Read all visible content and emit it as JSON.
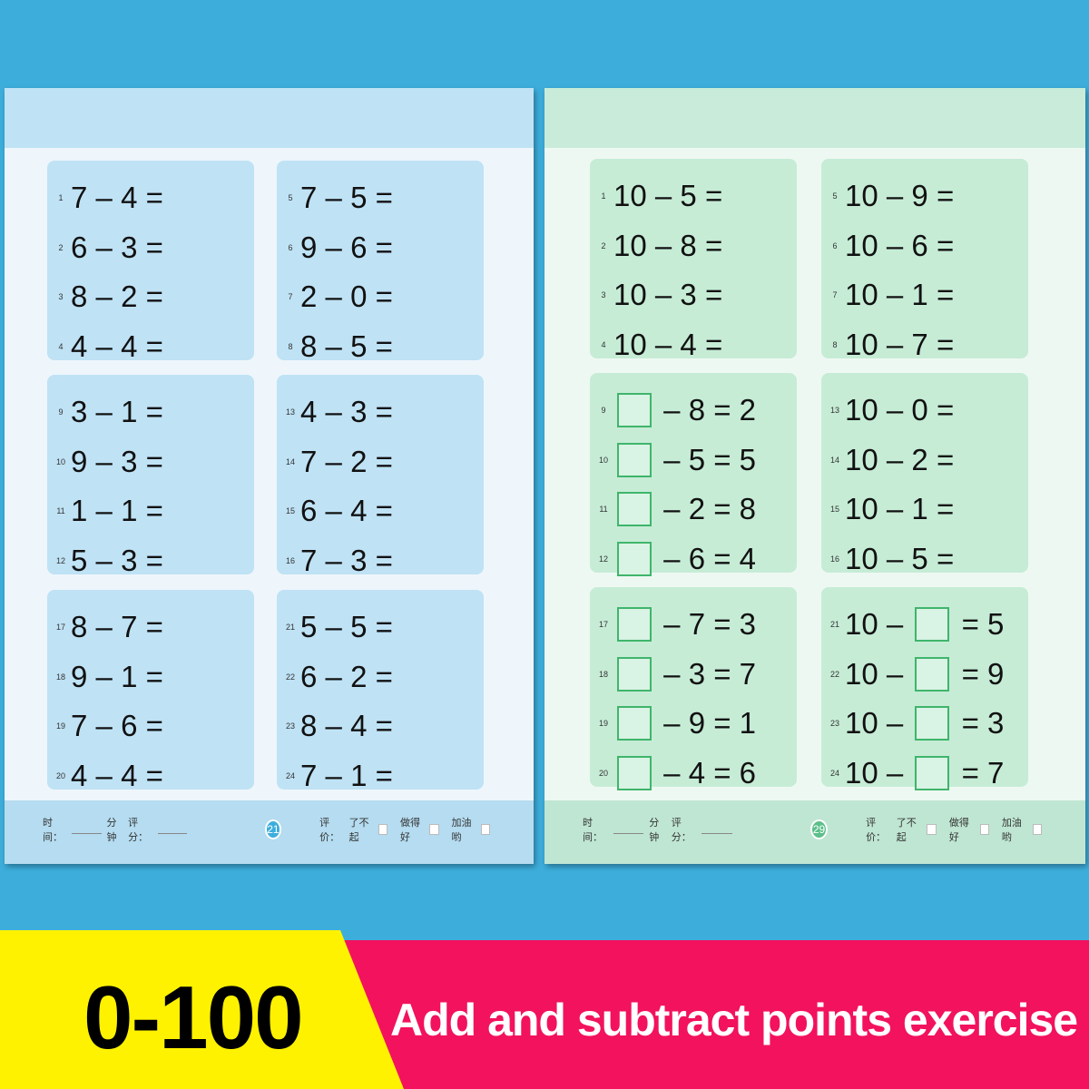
{
  "left_page": {
    "accent": "#3daedc",
    "page_number": "21",
    "footer": {
      "time_label": "时间：",
      "minutes_label": "分钟",
      "score_label": "评分：",
      "eval_label": "评价：",
      "ratings": [
        "了不起",
        "做得好",
        "加油哟"
      ]
    },
    "boxes": [
      [
        {
          "n": "1",
          "a": "7",
          "b": "4",
          "c": ""
        },
        {
          "n": "2",
          "a": "6",
          "b": "3",
          "c": ""
        },
        {
          "n": "3",
          "a": "8",
          "b": "2",
          "c": ""
        },
        {
          "n": "4",
          "a": "4",
          "b": "4",
          "c": ""
        }
      ],
      [
        {
          "n": "5",
          "a": "7",
          "b": "5",
          "c": ""
        },
        {
          "n": "6",
          "a": "9",
          "b": "6",
          "c": ""
        },
        {
          "n": "7",
          "a": "2",
          "b": "0",
          "c": ""
        },
        {
          "n": "8",
          "a": "8",
          "b": "5",
          "c": ""
        }
      ],
      [
        {
          "n": "9",
          "a": "3",
          "b": "1",
          "c": ""
        },
        {
          "n": "10",
          "a": "9",
          "b": "3",
          "c": ""
        },
        {
          "n": "11",
          "a": "1",
          "b": "1",
          "c": ""
        },
        {
          "n": "12",
          "a": "5",
          "b": "3",
          "c": ""
        }
      ],
      [
        {
          "n": "13",
          "a": "4",
          "b": "3",
          "c": ""
        },
        {
          "n": "14",
          "a": "7",
          "b": "2",
          "c": ""
        },
        {
          "n": "15",
          "a": "6",
          "b": "4",
          "c": ""
        },
        {
          "n": "16",
          "a": "7",
          "b": "3",
          "c": ""
        }
      ],
      [
        {
          "n": "17",
          "a": "8",
          "b": "7",
          "c": ""
        },
        {
          "n": "18",
          "a": "9",
          "b": "1",
          "c": ""
        },
        {
          "n": "19",
          "a": "7",
          "b": "6",
          "c": ""
        },
        {
          "n": "20",
          "a": "4",
          "b": "4",
          "c": ""
        }
      ],
      [
        {
          "n": "21",
          "a": "5",
          "b": "5",
          "c": ""
        },
        {
          "n": "22",
          "a": "6",
          "b": "2",
          "c": ""
        },
        {
          "n": "23",
          "a": "8",
          "b": "4",
          "c": ""
        },
        {
          "n": "24",
          "a": "7",
          "b": "1",
          "c": ""
        }
      ]
    ]
  },
  "right_page": {
    "accent": "#5cc08a",
    "page_number": "29",
    "footer": {
      "time_label": "时间：",
      "minutes_label": "分钟",
      "score_label": "评分：",
      "eval_label": "评价：",
      "ratings": [
        "了不起",
        "做得好",
        "加油哟"
      ]
    },
    "boxes": [
      [
        {
          "n": "1",
          "a": "10",
          "b": "5",
          "c": ""
        },
        {
          "n": "2",
          "a": "10",
          "b": "8",
          "c": ""
        },
        {
          "n": "3",
          "a": "10",
          "b": "3",
          "c": ""
        },
        {
          "n": "4",
          "a": "10",
          "b": "4",
          "c": ""
        }
      ],
      [
        {
          "n": "5",
          "a": "10",
          "b": "9",
          "c": ""
        },
        {
          "n": "6",
          "a": "10",
          "b": "6",
          "c": ""
        },
        {
          "n": "7",
          "a": "10",
          "b": "1",
          "c": ""
        },
        {
          "n": "8",
          "a": "10",
          "b": "7",
          "c": ""
        }
      ],
      [
        {
          "n": "9",
          "a": "□",
          "b": "8",
          "c": "2"
        },
        {
          "n": "10",
          "a": "□",
          "b": "5",
          "c": "5"
        },
        {
          "n": "11",
          "a": "□",
          "b": "2",
          "c": "8"
        },
        {
          "n": "12",
          "a": "□",
          "b": "6",
          "c": "4"
        }
      ],
      [
        {
          "n": "13",
          "a": "10",
          "b": "0",
          "c": ""
        },
        {
          "n": "14",
          "a": "10",
          "b": "2",
          "c": ""
        },
        {
          "n": "15",
          "a": "10",
          "b": "1",
          "c": ""
        },
        {
          "n": "16",
          "a": "10",
          "b": "5",
          "c": ""
        }
      ],
      [
        {
          "n": "17",
          "a": "□",
          "b": "7",
          "c": "3"
        },
        {
          "n": "18",
          "a": "□",
          "b": "3",
          "c": "7"
        },
        {
          "n": "19",
          "a": "□",
          "b": "9",
          "c": "1"
        },
        {
          "n": "20",
          "a": "□",
          "b": "4",
          "c": "6"
        }
      ],
      [
        {
          "n": "21",
          "a": "10",
          "b": "□",
          "c": "5"
        },
        {
          "n": "22",
          "a": "10",
          "b": "□",
          "c": "9"
        },
        {
          "n": "23",
          "a": "10",
          "b": "□",
          "c": "3"
        },
        {
          "n": "24",
          "a": "10",
          "b": "□",
          "c": "7"
        }
      ]
    ]
  },
  "banner": {
    "range": "0-100",
    "caption": "Add and subtract points exercise",
    "yellow": "#fff200",
    "pink": "#f2125e"
  }
}
